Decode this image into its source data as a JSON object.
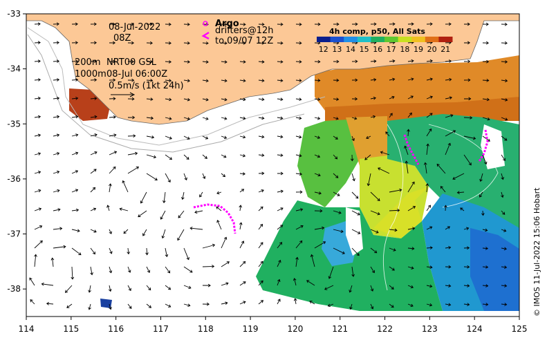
{
  "map": {
    "lon_ticks": [
      "114",
      "115",
      "116",
      "117",
      "118",
      "119",
      "120",
      "121",
      "122",
      "123",
      "124",
      "125"
    ],
    "lat_ticks": [
      "-33",
      "-34",
      "-35",
      "-36",
      "-37",
      "-38"
    ],
    "lon_range": [
      114,
      125
    ],
    "lat_range": [
      -38.5,
      -33
    ]
  },
  "annotations": {
    "date": "08-Jul-2022",
    "time": "08Z",
    "contour_200m": "200m",
    "contour_1000m": "1000m",
    "product": "NRT00 GSL",
    "product_time": "08-Jul 06:00Z",
    "scale": "0.5m/s (1kt 24h)"
  },
  "argo": {
    "label": "Argo",
    "drifters_line1": "drifters@12h",
    "drifters_line2": "to 09/07 12Z",
    "marker_color": "#ff00ff"
  },
  "colorbar": {
    "title": "4h comp, p50, All Sats",
    "labels": [
      "12",
      "13",
      "14",
      "15",
      "16",
      "17",
      "18",
      "19",
      "20",
      "21"
    ],
    "colors": [
      "#0a1e8c",
      "#1a50d0",
      "#2090e8",
      "#20c0c8",
      "#20b060",
      "#60c830",
      "#c8e020",
      "#f0c020",
      "#e07018",
      "#b02010"
    ]
  },
  "credit": "© IMOS 11-Jul-2022 15:06 Hobart",
  "colors": {
    "land": "#fcc896",
    "ocean_bg": "#ffffff"
  }
}
